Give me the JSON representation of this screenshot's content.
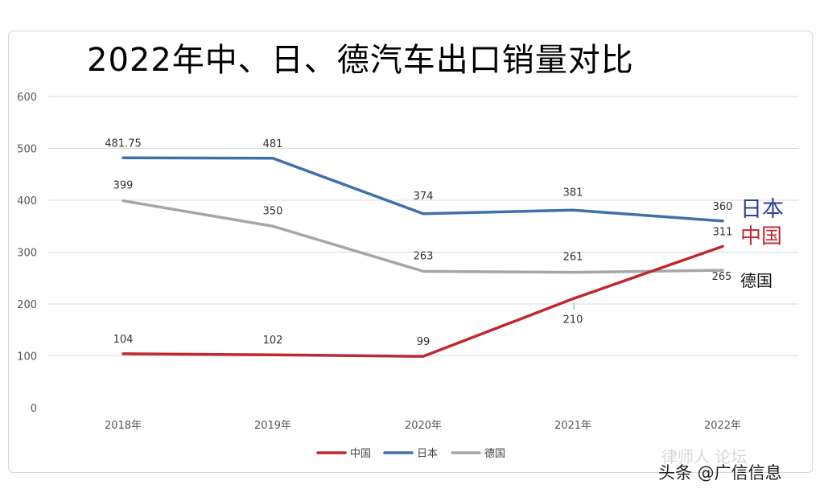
{
  "title": "2022年中、日、德汽车出口销量对比",
  "chart_data": {
    "type": "line",
    "categories": [
      "2018年",
      "2019年",
      "2020年",
      "2021年",
      "2022年"
    ],
    "ylim": [
      0,
      600
    ],
    "yticks": [
      0,
      100,
      200,
      300,
      400,
      500,
      600
    ],
    "grid": true,
    "legend_position": "bottom",
    "series": [
      {
        "name": "中国",
        "color": "#c0282d",
        "values": [
          104,
          102,
          99,
          210,
          311
        ],
        "labels": [
          "104",
          "102",
          "99",
          "210",
          "311"
        ],
        "end_label": "中国",
        "end_label_color": "#c0282d"
      },
      {
        "name": "日本",
        "color": "#4070a8",
        "values": [
          481.75,
          481,
          374,
          381,
          360
        ],
        "labels": [
          "481.75",
          "481",
          "374",
          "381",
          "360"
        ],
        "end_label": "日本",
        "end_label_color": "#2f3f9a"
      },
      {
        "name": "德国",
        "color": "#a6a6a6",
        "values": [
          399,
          350,
          263,
          261,
          265
        ],
        "labels": [
          "399",
          "350",
          "263",
          "261",
          "265"
        ],
        "end_label": "德国",
        "end_label_color": "#111111"
      }
    ]
  },
  "watermark": {
    "line1": "律师人 论坛",
    "line2": "头条 @广信信息"
  }
}
